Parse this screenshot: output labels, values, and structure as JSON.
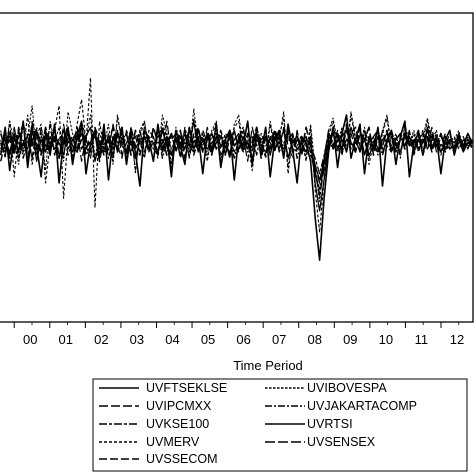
{
  "chart_data": {
    "type": "line",
    "title": "",
    "xlabel": "Time Period",
    "ylabel": "",
    "x_tick_labels": [
      "00",
      "01",
      "02",
      "03",
      "04",
      "05",
      "06",
      "07",
      "08",
      "09",
      "10",
      "11",
      "12"
    ],
    "x_range": [
      1999.6,
      2012.9
    ],
    "y_range": [
      -1.0,
      1.0
    ],
    "grid": false,
    "legend_position": "bottom-center",
    "series": [
      {
        "name": "UVFTSEKLSE",
        "dash": "solid",
        "values": [
          0.14,
          0.18,
          0.1,
          0.22,
          0.06,
          0.16,
          0.12,
          0.28,
          0.04,
          0.18,
          0.1,
          0.2,
          0.12,
          0.16,
          0.08,
          0.24,
          0.14,
          0.1,
          0.18,
          0.2,
          0.26,
          0.04,
          0.16,
          0.12,
          0.18,
          0.08,
          0.22,
          0.14,
          0.1,
          0.16,
          0.06,
          0.18,
          0.2,
          0.12,
          0.16,
          0.1,
          0.24,
          0.14,
          0.08,
          0.18,
          0.12,
          0.16,
          0.14,
          0.3,
          0.1,
          0.18,
          0.12,
          0.16,
          0.2,
          0.08,
          0.14,
          0.1,
          0.18,
          0.22,
          0.12,
          0.16,
          0.06,
          0.18,
          0.14,
          0.1,
          0.2,
          0.12,
          0.16,
          0.24,
          0.06,
          0.18,
          0.12,
          0.16,
          0.1,
          0.2,
          -0.1,
          -0.28,
          -0.08,
          0.14,
          0.22,
          0.12,
          0.18,
          0.1,
          0.26,
          0.16,
          0.12,
          0.18,
          0.08,
          0.14,
          0.1,
          0.18,
          0.22,
          0.12,
          0.16,
          0.1,
          0.2,
          0.14,
          0.18,
          0.12,
          0.16,
          0.24,
          0.14,
          0.18,
          0.1,
          0.16,
          0.12,
          0.14,
          0.18,
          0.1,
          0.16,
          0.14
        ]
      },
      {
        "name": "UVIBOVESPA",
        "dash": "dense-dash",
        "values": [
          0.24,
          0.1,
          0.3,
          0.16,
          0.02,
          0.28,
          0.2,
          0.4,
          0.08,
          0.22,
          -0.02,
          0.3,
          0.16,
          0.26,
          0.04,
          0.36,
          0.22,
          0.12,
          0.3,
          0.18,
          0.34,
          0.06,
          0.22,
          0.14,
          0.28,
          0.02,
          0.32,
          0.18,
          0.1,
          0.26,
          -0.04,
          0.24,
          0.3,
          0.12,
          0.2,
          0.08,
          0.34,
          0.22,
          0.02,
          0.26,
          0.16,
          0.24,
          0.1,
          0.38,
          0.14,
          0.22,
          0.08,
          0.24,
          0.3,
          0.04,
          0.2,
          0.06,
          0.28,
          0.34,
          0.14,
          0.2,
          0.02,
          0.24,
          0.18,
          0.08,
          0.3,
          0.14,
          0.2,
          0.32,
          0.0,
          0.22,
          0.14,
          0.2,
          0.06,
          0.28,
          0.0,
          -0.22,
          0.06,
          0.24,
          0.32,
          0.16,
          0.26,
          0.12,
          0.36,
          0.2,
          0.14,
          0.26,
          0.06,
          0.18,
          0.1,
          0.24,
          0.34,
          0.14,
          0.22,
          0.08,
          0.28,
          0.16,
          0.24,
          0.12,
          0.2,
          0.32,
          0.18,
          0.24,
          0.1,
          0.2,
          0.14,
          0.18,
          0.24,
          0.12,
          0.2,
          0.16
        ]
      },
      {
        "name": "UVIPCMXX",
        "dash": "long-dash",
        "values": [
          0.1,
          0.22,
          0.06,
          0.26,
          0.12,
          0.18,
          0.04,
          0.3,
          0.16,
          0.08,
          0.24,
          0.14,
          0.2,
          0.06,
          0.28,
          0.12,
          0.18,
          0.24,
          0.04,
          0.2,
          0.14,
          0.26,
          0.08,
          0.22,
          0.1,
          0.28,
          0.14,
          0.06,
          0.24,
          0.16,
          0.2,
          0.1,
          0.26,
          0.18,
          0.04,
          0.22,
          0.12,
          0.3,
          0.08,
          0.2,
          0.14,
          0.24,
          0.06,
          0.22,
          0.18,
          0.1,
          0.26,
          0.12,
          0.16,
          0.22,
          0.08,
          0.18,
          0.24,
          0.1,
          0.2,
          0.04,
          0.26,
          0.14,
          0.18,
          0.22,
          0.08,
          0.2,
          0.12,
          0.26,
          0.14,
          0.06,
          0.24,
          0.1,
          0.18,
          0.14,
          0.02,
          -0.08,
          0.04,
          0.2,
          0.14,
          0.24,
          0.1,
          0.18,
          0.22,
          0.12,
          0.26,
          0.08,
          0.2,
          0.16,
          0.24,
          0.1,
          0.18,
          0.22,
          0.12,
          0.2,
          0.14,
          0.24,
          0.08,
          0.18,
          0.22,
          0.12,
          0.26,
          0.1,
          0.2,
          0.14,
          0.22,
          0.1,
          0.16,
          0.2,
          0.12,
          0.18
        ]
      },
      {
        "name": "UVJAKARTACOMP",
        "dash": "dash-dot",
        "values": [
          0.04,
          0.16,
          0.2,
          0.1,
          0.24,
          0.06,
          0.18,
          0.14,
          0.26,
          0.08,
          0.2,
          0.12,
          0.28,
          0.06,
          0.16,
          0.22,
          0.1,
          0.18,
          0.26,
          0.08,
          0.14,
          0.2,
          0.12,
          0.24,
          0.06,
          0.18,
          0.16,
          0.22,
          0.1,
          0.26,
          0.14,
          0.08,
          0.2,
          0.18,
          0.12,
          0.24,
          0.06,
          0.16,
          0.22,
          0.1,
          0.2,
          0.12,
          0.26,
          0.08,
          0.18,
          0.14,
          0.22,
          0.1,
          0.16,
          0.24,
          0.12,
          0.2,
          0.06,
          0.18,
          0.26,
          0.1,
          0.14,
          0.22,
          0.08,
          0.2,
          0.16,
          0.1,
          0.24,
          0.12,
          0.18,
          0.22,
          0.06,
          0.16,
          0.2,
          0.1,
          -0.04,
          -0.14,
          0.02,
          0.18,
          0.12,
          0.22,
          0.08,
          0.26,
          0.14,
          0.18,
          0.1,
          0.24,
          0.16,
          0.12,
          0.2,
          0.08,
          0.18,
          0.24,
          0.14,
          0.1,
          0.22,
          0.16,
          0.12,
          0.2,
          0.08,
          0.18,
          0.22,
          0.14,
          0.1,
          0.2,
          0.16,
          0.12,
          0.22,
          0.14,
          0.18,
          0.12
        ]
      },
      {
        "name": "UVKSE100",
        "dash": "long-dash-short",
        "values": [
          0.12,
          0.2,
          0.08,
          0.24,
          0.16,
          0.1,
          0.22,
          0.18,
          0.06,
          0.26,
          0.14,
          0.1,
          0.2,
          0.16,
          0.24,
          0.08,
          0.18,
          0.12,
          0.22,
          0.14,
          0.06,
          0.26,
          0.18,
          0.1,
          0.2,
          0.14,
          0.24,
          0.08,
          0.16,
          0.22,
          0.12,
          0.18,
          0.06,
          0.24,
          0.2,
          0.1,
          0.16,
          0.22,
          0.12,
          0.18,
          0.08,
          0.26,
          0.14,
          0.2,
          0.1,
          0.24,
          0.16,
          0.08,
          0.2,
          0.12,
          0.22,
          0.18,
          0.1,
          0.16,
          0.24,
          0.12,
          0.2,
          0.08,
          0.22,
          0.14,
          0.18,
          0.24,
          0.1,
          0.16,
          0.2,
          0.12,
          0.22,
          0.08,
          0.18,
          0.14,
          0.06,
          -0.04,
          0.08,
          0.22,
          0.16,
          0.1,
          0.2,
          0.24,
          0.12,
          0.18,
          0.22,
          0.08,
          0.16,
          0.2,
          0.12,
          0.24,
          0.14,
          0.1,
          0.18,
          0.22,
          0.14,
          0.2,
          0.1,
          0.16,
          0.24,
          0.12,
          0.18,
          0.14,
          0.22,
          0.1,
          0.16,
          0.2,
          0.12,
          0.18,
          0.14,
          0.16
        ]
      },
      {
        "name": "UVRTSI",
        "dash": "solid-heavy",
        "values": [
          0.08,
          0.26,
          -0.02,
          0.2,
          0.1,
          0.3,
          0.0,
          0.24,
          0.14,
          -0.06,
          0.22,
          0.08,
          0.28,
          -0.1,
          0.18,
          0.26,
          0.02,
          0.2,
          0.3,
          -0.04,
          0.16,
          0.24,
          0.06,
          0.28,
          -0.08,
          0.2,
          0.12,
          0.26,
          0.02,
          0.22,
          0.1,
          -0.12,
          0.24,
          0.18,
          0.04,
          0.28,
          0.1,
          0.2,
          -0.06,
          0.24,
          0.14,
          0.02,
          0.26,
          0.12,
          0.2,
          -0.04,
          0.22,
          0.1,
          0.28,
          0.0,
          0.18,
          0.24,
          -0.08,
          0.2,
          0.14,
          0.3,
          0.02,
          0.22,
          0.1,
          0.26,
          -0.06,
          0.18,
          0.24,
          0.06,
          0.28,
          0.12,
          -0.1,
          0.2,
          0.16,
          0.04,
          -0.32,
          -0.6,
          -0.2,
          0.1,
          0.26,
          0.0,
          0.22,
          0.34,
          0.06,
          0.18,
          0.28,
          -0.04,
          0.2,
          0.12,
          0.26,
          -0.12,
          0.18,
          0.24,
          0.02,
          0.2,
          0.3,
          -0.06,
          0.16,
          0.22,
          0.08,
          0.26,
          0.12,
          0.2,
          -0.04,
          0.18,
          0.24,
          0.08,
          0.2,
          0.14,
          0.22,
          0.16
        ]
      },
      {
        "name": "UVMERV",
        "dash": "short-dash",
        "values": [
          0.18,
          0.06,
          0.3,
          -0.06,
          0.22,
          0.12,
          0.34,
          0.02,
          0.2,
          0.28,
          -0.1,
          0.16,
          0.24,
          0.4,
          -0.2,
          0.22,
          0.1,
          0.28,
          0.44,
          0.16,
          0.58,
          -0.26,
          0.3,
          0.12,
          0.2,
          0.04,
          0.34,
          0.16,
          0.08,
          0.24,
          -0.02,
          0.2,
          0.3,
          0.1,
          0.16,
          0.06,
          0.28,
          0.2,
          0.0,
          0.24,
          0.12,
          0.22,
          0.06,
          0.32,
          0.12,
          0.2,
          0.04,
          0.22,
          0.28,
          0.0,
          0.18,
          0.08,
          0.26,
          0.3,
          0.1,
          0.18,
          -0.02,
          0.22,
          0.16,
          0.06,
          0.28,
          0.12,
          0.18,
          0.36,
          -0.04,
          0.2,
          0.1,
          0.18,
          0.04,
          0.26,
          -0.14,
          -0.42,
          -0.08,
          0.2,
          0.3,
          0.12,
          0.24,
          0.1,
          0.34,
          0.18,
          0.1,
          0.24,
          0.02,
          0.16,
          0.08,
          0.22,
          0.32,
          0.12,
          0.2,
          0.06,
          0.26,
          0.14,
          0.22,
          0.1,
          0.18,
          0.3,
          0.16,
          0.22,
          0.08,
          0.18,
          0.12,
          0.16,
          0.22,
          0.1,
          0.18,
          0.14
        ]
      },
      {
        "name": "UVSENSEX",
        "dash": "long-dash-heavy",
        "values": [
          0.16,
          0.08,
          0.24,
          0.12,
          0.2,
          0.28,
          0.06,
          0.18,
          0.22,
          0.1,
          0.26,
          0.14,
          0.18,
          0.06,
          0.24,
          0.16,
          0.2,
          0.1,
          0.28,
          0.12,
          0.18,
          0.22,
          0.04,
          0.2,
          0.16,
          0.26,
          0.1,
          0.18,
          0.22,
          0.08,
          0.24,
          0.14,
          0.2,
          0.1,
          0.26,
          0.16,
          0.18,
          0.08,
          0.22,
          0.12,
          0.24,
          0.06,
          0.2,
          0.16,
          0.26,
          0.1,
          0.18,
          0.22,
          0.12,
          0.2,
          0.08,
          0.24,
          0.14,
          0.18,
          0.1,
          0.22,
          0.16,
          0.26,
          0.06,
          0.2,
          0.12,
          0.24,
          0.18,
          0.08,
          0.22,
          0.16,
          0.2,
          0.1,
          0.26,
          0.14,
          -0.02,
          -0.18,
          0.0,
          0.16,
          0.24,
          0.2,
          0.12,
          0.28,
          0.16,
          0.1,
          0.22,
          0.18,
          0.26,
          0.08,
          0.2,
          0.14,
          0.24,
          0.1,
          0.18,
          0.22,
          0.12,
          0.2,
          0.16,
          0.24,
          0.1,
          0.18,
          0.2,
          0.14,
          0.22,
          0.12,
          0.18,
          0.16,
          0.2,
          0.12,
          0.18,
          0.16
        ]
      },
      {
        "name": "UVSSECOM",
        "dash": "long-dash-medium",
        "values": [
          0.22,
          0.12,
          0.18,
          0.08,
          0.26,
          0.14,
          0.2,
          0.06,
          0.24,
          0.16,
          0.1,
          0.28,
          0.08,
          0.2,
          0.14,
          0.22,
          0.06,
          0.26,
          0.12,
          0.18,
          0.1,
          0.24,
          0.16,
          0.08,
          0.22,
          0.12,
          0.2,
          0.26,
          0.06,
          0.18,
          0.14,
          0.24,
          0.1,
          0.2,
          0.16,
          0.08,
          0.26,
          0.12,
          0.18,
          0.22,
          0.06,
          0.2,
          0.14,
          0.1,
          0.24,
          0.16,
          0.2,
          0.08,
          0.22,
          0.14,
          0.18,
          0.06,
          0.24,
          0.12,
          0.2,
          0.16,
          0.1,
          0.26,
          0.14,
          0.18,
          0.08,
          0.22,
          0.16,
          0.12,
          0.24,
          0.1,
          0.18,
          0.2,
          0.14,
          0.08,
          0.02,
          -0.1,
          0.06,
          0.24,
          0.12,
          0.18,
          0.2,
          0.1,
          0.22,
          0.26,
          0.14,
          0.16,
          0.1,
          0.2,
          0.24,
          0.12,
          0.16,
          0.2,
          0.1,
          0.18,
          0.14,
          0.22,
          0.12,
          0.18,
          0.16,
          0.2,
          0.1,
          0.18,
          0.14,
          0.22,
          0.12,
          0.16,
          0.18,
          0.14,
          0.16,
          0.18
        ]
      }
    ]
  }
}
